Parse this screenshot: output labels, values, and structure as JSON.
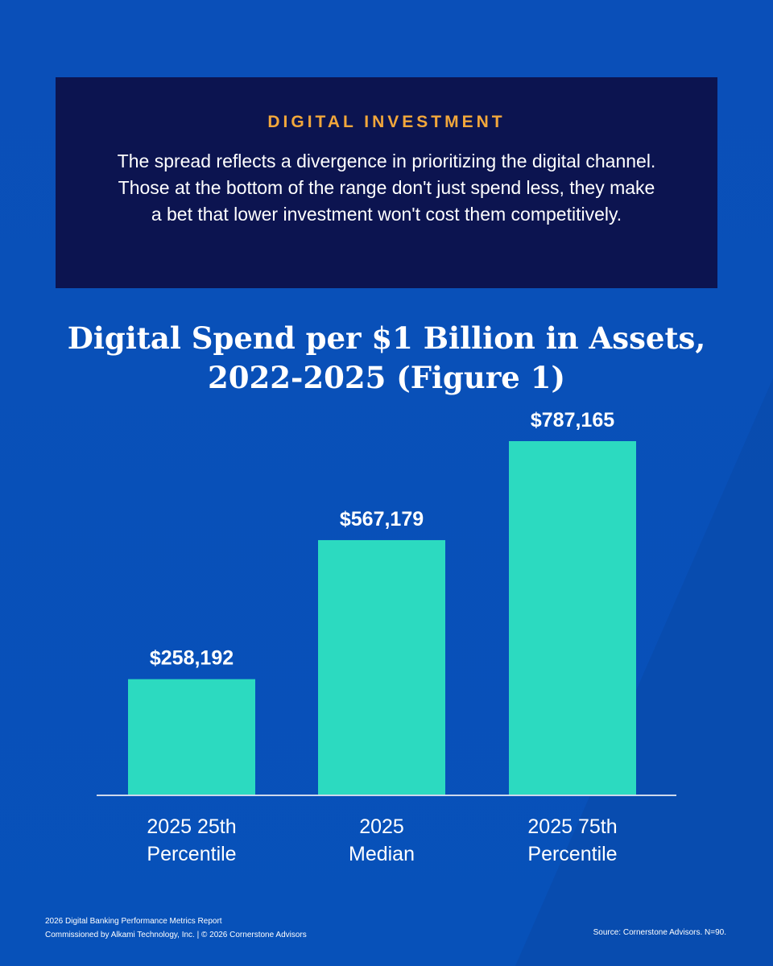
{
  "callout": {
    "label": "DIGITAL INVESTMENT",
    "body": "The spread reflects a divergence in prioritizing the digital channel. Those at the bottom of the range don't just spend less, they make a bet that lower investment won't cost them competitively."
  },
  "colors": {
    "background": "#0751b9",
    "callout_bg": "#0c1450",
    "accent": "#f2a73b",
    "bar": "#2cdac0"
  },
  "chart_data": {
    "type": "bar",
    "title": "Digital Spend per $1 Billion in Assets, 2022-2025 (Figure 1)",
    "categories": [
      "2025 25th Percentile",
      "2025 Median",
      "2025 75th Percentile"
    ],
    "category_lines": [
      [
        "2025 25th",
        "Percentile"
      ],
      [
        "2025",
        "Median"
      ],
      [
        "2025 75th",
        "Percentile"
      ]
    ],
    "values": [
      258192,
      567179,
      787165
    ],
    "value_labels": [
      "$258,192",
      "$567,179",
      "$787,165"
    ],
    "xlabel": "",
    "ylabel": "",
    "grid": false,
    "legend": "none"
  },
  "footer": {
    "line1": "2026 Digital Banking Performance Metrics Report",
    "line2": "Commissioned by Alkami Technology, Inc.  |  © 2026 Cornerstone Advisors",
    "source": "Source: Cornerstone Advisors. N=90."
  }
}
